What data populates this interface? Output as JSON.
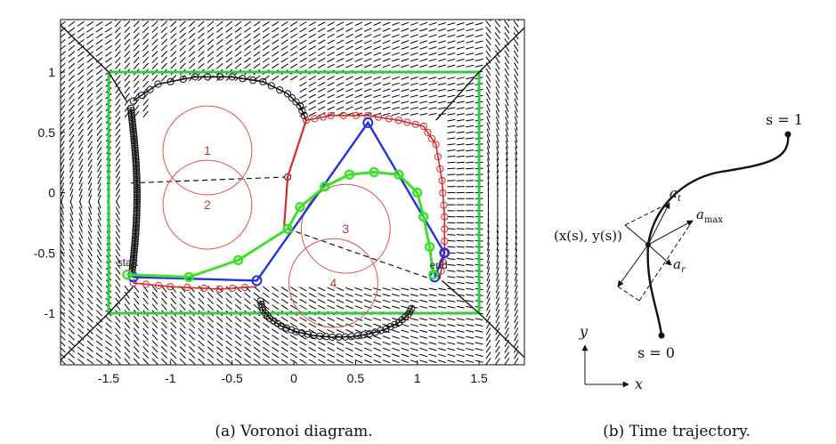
{
  "panel_a": {
    "caption": "(a) Voronoi diagram.",
    "x_ticks": [
      "-1.5",
      "-1",
      "-0.5",
      "0",
      "0.5",
      "1",
      "1.5"
    ],
    "y_ticks": [
      "1",
      "0.5",
      "0",
      "-0.5",
      "-1"
    ],
    "obstacles": [
      {
        "label": "1",
        "cx": -0.7,
        "cy": 0.35,
        "r": 0.36
      },
      {
        "label": "2",
        "cx": -0.7,
        "cy": -0.1,
        "r": 0.36
      },
      {
        "label": "3",
        "cx": 0.42,
        "cy": -0.3,
        "r": 0.36
      },
      {
        "label": "4",
        "cx": 0.32,
        "cy": -0.75,
        "r": 0.36
      }
    ],
    "start_label": "start",
    "end_label": "end",
    "colors": {
      "boundary": "#2ecc40",
      "voronoi_path": "#d42a2a",
      "shortcut_path": "#2233dd",
      "smoothed_path": "#3ee02a",
      "obstacle": "#d9534f",
      "field": "#000000"
    }
  },
  "panel_b": {
    "caption": "(b) Time trajectory.",
    "label_s1": "s = 1",
    "label_s0": "s = 0",
    "label_point": "(x(s), y(s))",
    "label_at": "a",
    "label_at_sub": "t",
    "label_amax": "a",
    "label_amax_sub": "max",
    "label_ar": "a",
    "label_ar_sub": "r",
    "label_x": "x",
    "label_y": "y"
  }
}
